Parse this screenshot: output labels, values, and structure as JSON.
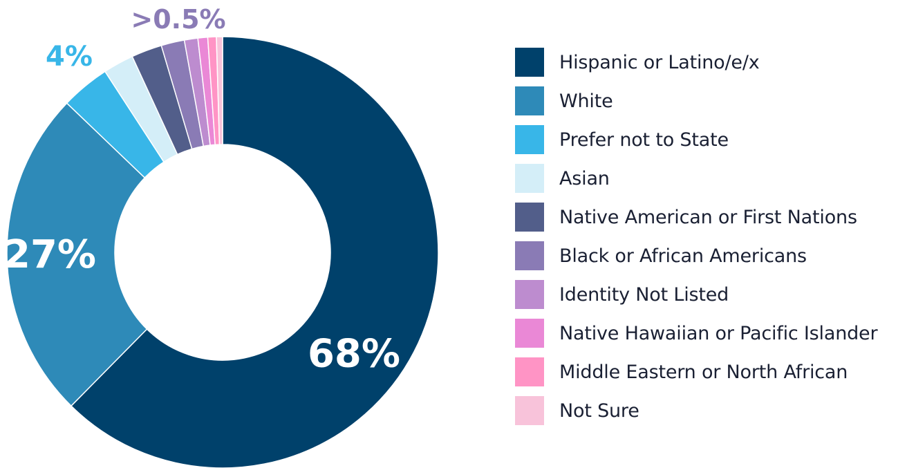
{
  "chart_data": {
    "type": "pie",
    "variant": "donut",
    "categories": [
      "Hispanic or Latino/e/x",
      "White",
      "Prefer not to State",
      "Asian",
      "Native American or First Nations",
      "Black or African Americans",
      "Identity Not Listed",
      "Native Hawaiian or Pacific Islander",
      "Middle Eastern or North African",
      "Not Sure"
    ],
    "values": [
      68,
      27,
      4,
      2.5,
      2.5,
      1.9,
      1.1,
      0.8,
      0.7,
      0.5
    ],
    "colors": [
      "#00416b",
      "#2e8ab8",
      "#38b6e8",
      "#d4eef8",
      "#525e8a",
      "#8a7bb5",
      "#bd8ccf",
      "#ea88d6",
      "#ff94c5",
      "#f8c3da"
    ],
    "data_labels": [
      {
        "category": "Hispanic or Latino/e/x",
        "text": "68%",
        "color": "#ffffff"
      },
      {
        "category": "White",
        "text": "27%",
        "color": "#ffffff"
      },
      {
        "category": "Prefer not to State",
        "text": "4%",
        "color": "#38b6e8"
      },
      {
        "category": "Black or African Americans",
        "text": ">0.5%",
        "color": "#8a7bb5"
      }
    ],
    "legend_position": "right"
  }
}
